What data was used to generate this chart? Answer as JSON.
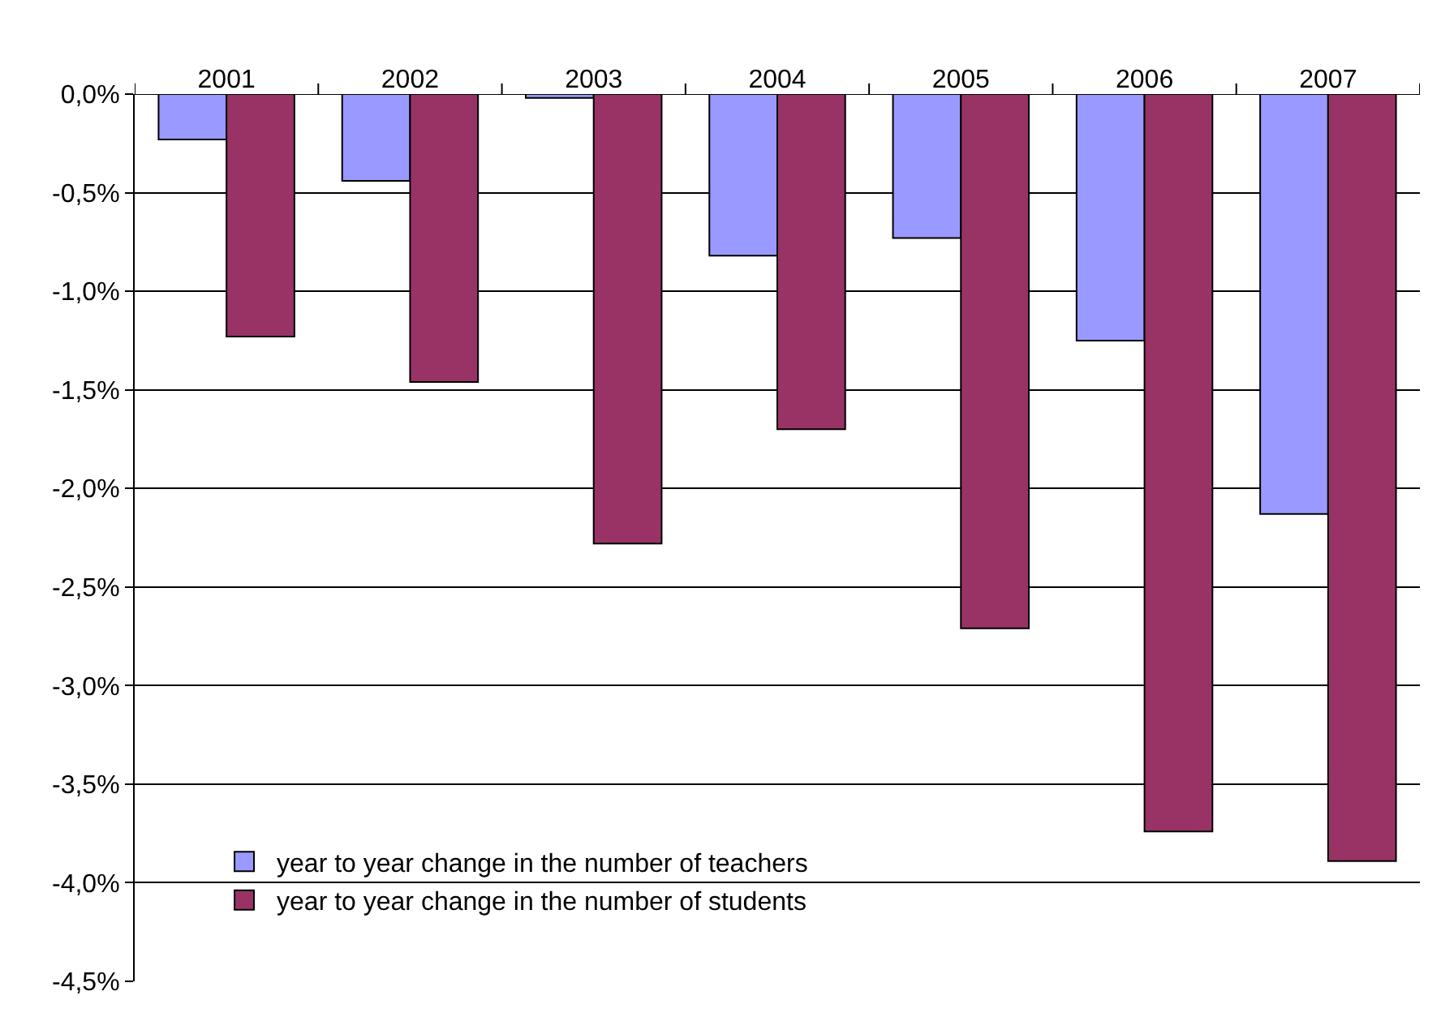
{
  "chart_data": {
    "type": "bar",
    "categories": [
      "2001",
      "2002",
      "2003",
      "2004",
      "2005",
      "2006",
      "2007"
    ],
    "series": [
      {
        "name": "year to year change in the number of teachers",
        "color": "#9999ff",
        "values": [
          -0.23,
          -0.44,
          -0.02,
          -0.82,
          -0.73,
          -1.25,
          -2.13
        ]
      },
      {
        "name": "year to year change in the number of students",
        "color": "#993366",
        "values": [
          -1.23,
          -1.46,
          -2.28,
          -1.7,
          -2.71,
          -3.74,
          -3.89
        ]
      }
    ],
    "ylim": [
      -4.5,
      0
    ],
    "yticks": [
      {
        "value": 0,
        "label": "0,0%"
      },
      {
        "value": -0.5,
        "label": "-0,5%"
      },
      {
        "value": -1,
        "label": "-1,0%"
      },
      {
        "value": -1.5,
        "label": "-1,5%"
      },
      {
        "value": -2,
        "label": "-2,0%"
      },
      {
        "value": -2.5,
        "label": "-2,5%"
      },
      {
        "value": -3,
        "label": "-3,0%"
      },
      {
        "value": -3.5,
        "label": "-3,5%"
      },
      {
        "value": -4,
        "label": "-4,0%"
      },
      {
        "value": -4.5,
        "label": "-4,5%"
      }
    ],
    "grid": "y",
    "legend": "bottom left"
  }
}
